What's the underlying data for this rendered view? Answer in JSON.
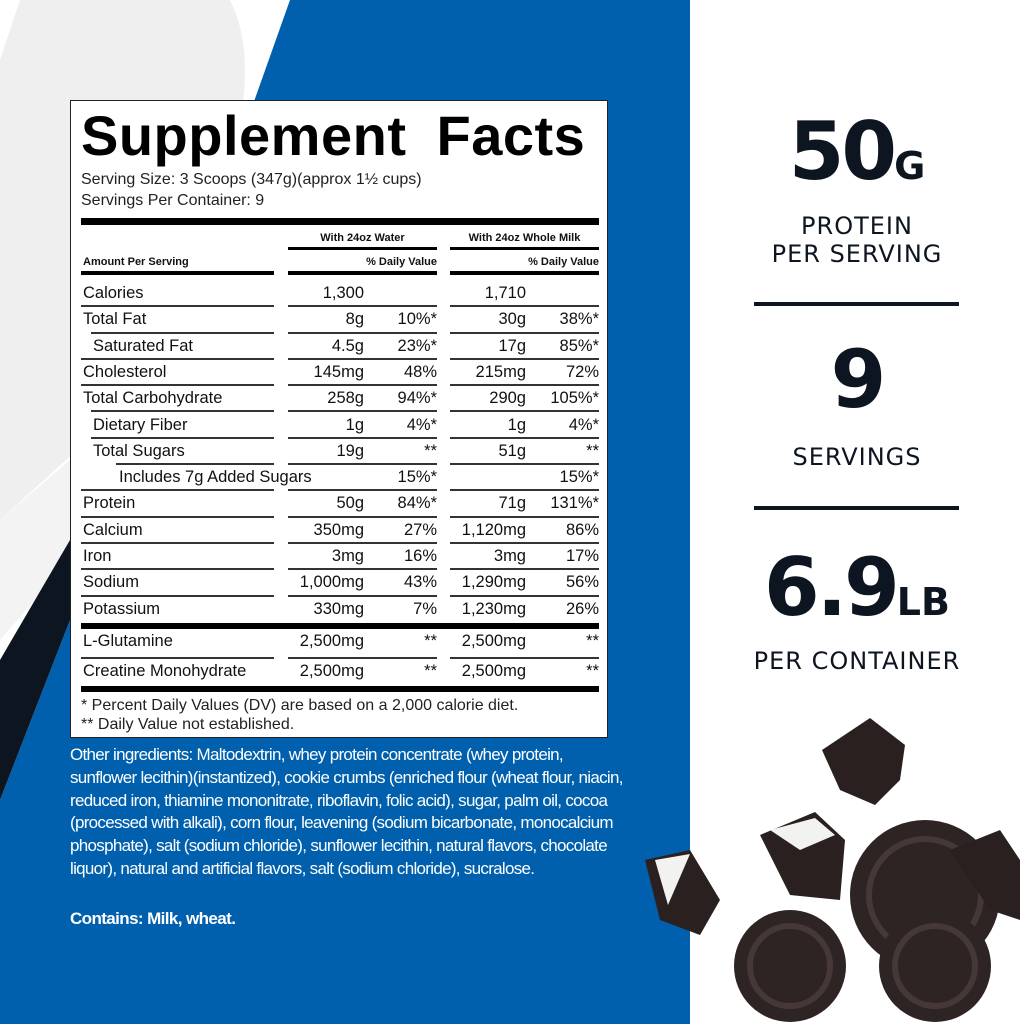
{
  "colors": {
    "blue": "#0060ae",
    "navy": "#0d1520",
    "watermark": "#eeeeee"
  },
  "label": {
    "title": "Supplement Facts",
    "serving_size": "Serving Size: 3 Scoops (347g)(approx 1½ cups)",
    "servings_per_container": "Servings Per Container: 9",
    "col_water": "With 24oz Water",
    "col_milk": "With 24oz Whole Milk",
    "amount_per_serving": "Amount Per Serving",
    "dv_header": "% Daily Value",
    "rows": [
      {
        "name": "Calories",
        "indent": 0,
        "water": "1,300",
        "water_dv": "",
        "milk": "1,710",
        "milk_dv": ""
      },
      {
        "name": "Total Fat",
        "indent": 0,
        "water": "8g",
        "water_dv": "10%*",
        "milk": "30g",
        "milk_dv": "38%*"
      },
      {
        "name": "Saturated Fat",
        "indent": 1,
        "water": "4.5g",
        "water_dv": "23%*",
        "milk": "17g",
        "milk_dv": "85%*"
      },
      {
        "name": "Cholesterol",
        "indent": 0,
        "water": "145mg",
        "water_dv": "48%",
        "milk": "215mg",
        "milk_dv": "72%"
      },
      {
        "name": "Total Carbohydrate",
        "indent": 0,
        "water": "258g",
        "water_dv": "94%*",
        "milk": "290g",
        "milk_dv": "105%*"
      },
      {
        "name": "Dietary Fiber",
        "indent": 1,
        "water": "1g",
        "water_dv": "4%*",
        "milk": "1g",
        "milk_dv": "4%*"
      },
      {
        "name": "Total Sugars",
        "indent": 1,
        "water": "19g",
        "water_dv": "**",
        "milk": "51g",
        "milk_dv": "**"
      },
      {
        "name": "Includes 7g Added Sugars",
        "indent": 2,
        "water": "",
        "water_dv": "15%*",
        "milk": "",
        "milk_dv": "15%*"
      },
      {
        "name": "Protein",
        "indent": 0,
        "water": "50g",
        "water_dv": "84%*",
        "milk": "71g",
        "milk_dv": "131%*"
      },
      {
        "name": "Calcium",
        "indent": 0,
        "water": "350mg",
        "water_dv": "27%",
        "milk": "1,120mg",
        "milk_dv": "86%"
      },
      {
        "name": "Iron",
        "indent": 0,
        "water": "3mg",
        "water_dv": "16%",
        "milk": "3mg",
        "milk_dv": "17%"
      },
      {
        "name": "Sodium",
        "indent": 0,
        "water": "1,000mg",
        "water_dv": "43%",
        "milk": "1,290mg",
        "milk_dv": "56%"
      },
      {
        "name": "Potassium",
        "indent": 0,
        "water": "330mg",
        "water_dv": "7%",
        "milk": "1,230mg",
        "milk_dv": "26%"
      }
    ],
    "other_rows": [
      {
        "name": "L-Glutamine",
        "indent": 0,
        "water": "2,500mg",
        "water_dv": "**",
        "milk": "2,500mg",
        "milk_dv": "**"
      },
      {
        "name": "Creatine Monohydrate",
        "indent": 0,
        "water": "2,500mg",
        "water_dv": "**",
        "milk": "2,500mg",
        "milk_dv": "**"
      }
    ],
    "footnote_1": "* Percent Daily Values (DV) are based on a 2,000 calorie diet.",
    "footnote_2": "** Daily Value not established."
  },
  "ingredients": "Other ingredients: Maltodextrin, whey protein concentrate (whey protein, sunflower lecithin)(instantized), cookie crumbs (enriched flour (wheat flour, niacin, reduced iron, thiamine mononitrate, riboflavin, folic acid), sugar, palm oil, cocoa (processed with alkali), corn flour, leavening (sodium bicarbonate, monocalcium phosphate), salt (sodium chloride), sunflower lecithin, natural flavors, chocolate liquor), natural and artificial flavors, salt (sodium chloride), sucralose.",
  "contains": "Contains: Milk, wheat.",
  "stats": {
    "protein_value": "50",
    "protein_unit": "G",
    "protein_label_1": "PROTEIN",
    "protein_label_2": "PER SERVING",
    "servings_value": "9",
    "servings_label": "SERVINGS",
    "weight_value": "6.9",
    "weight_unit": "LB",
    "weight_label": "PER CONTAINER"
  }
}
